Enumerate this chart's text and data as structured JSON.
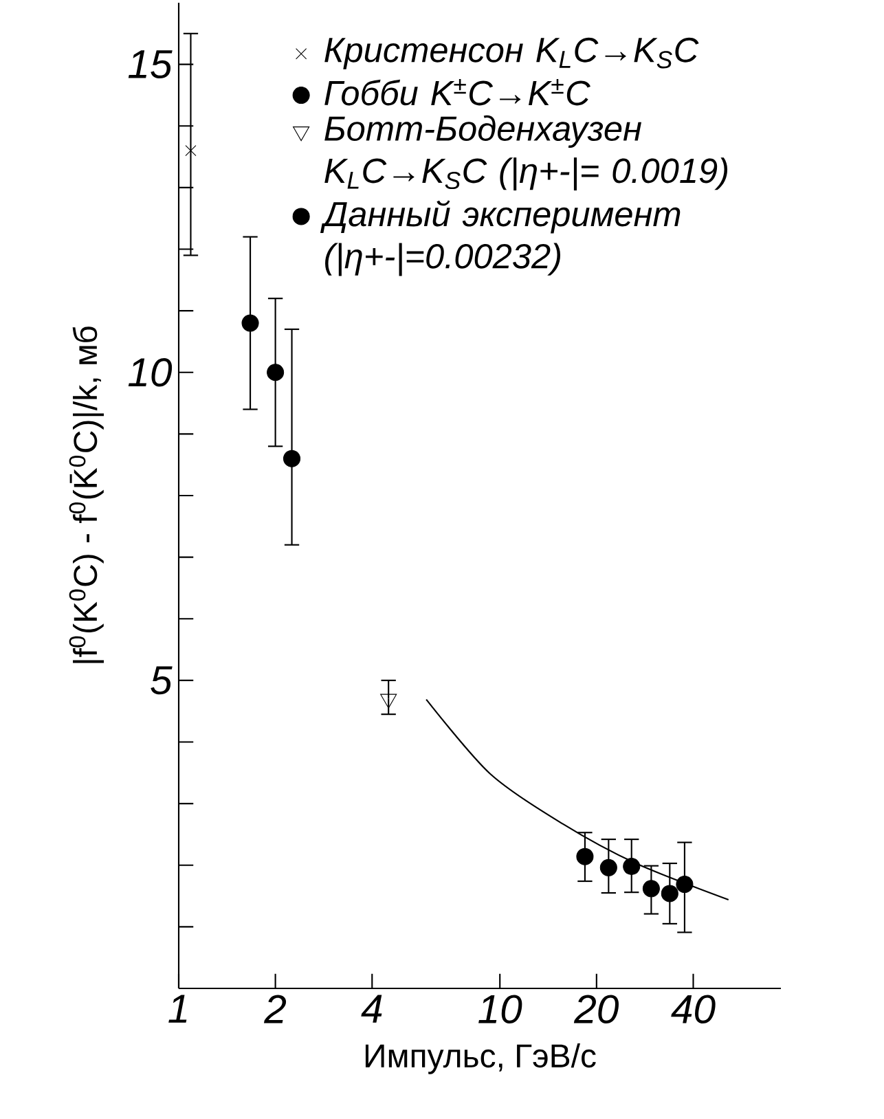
{
  "chart_data": {
    "type": "scatter",
    "xlabel": "Импульс, ГэВ/с",
    "ylabel": "|f$^{0}$(K$^{0}$C) - f$^{0}$(K̄$^{0}$C)|/k, мб",
    "log": "x",
    "grid": false,
    "legend": "top right",
    "xlim": [
      1,
      75
    ],
    "xticks": [
      1,
      2,
      4,
      10,
      20,
      40
    ],
    "ylim": [
      0,
      16
    ],
    "yticks": [
      {
        "value": 1,
        "label": null
      },
      {
        "value": 2,
        "label": null
      },
      {
        "value": 3,
        "label": null
      },
      {
        "value": 4,
        "label": null
      },
      5,
      {
        "value": 6,
        "label": null
      },
      {
        "value": 7,
        "label": null
      },
      {
        "value": 8,
        "label": null
      },
      {
        "value": 9,
        "label": null
      },
      10,
      {
        "value": 11,
        "label": null
      },
      {
        "value": 12,
        "label": null
      },
      {
        "value": 13,
        "label": null
      },
      {
        "value": 14,
        "label": null
      },
      15
    ],
    "series": [
      {
        "name": "Кристенсон K$_{L}$C→K$_{S}$C",
        "color": "#000000",
        "marker": "cross",
        "x": [
          1.09
        ],
        "values": [
          13.6
        ],
        "errors": [
          [
            11.9,
            15.5
          ]
        ]
      },
      {
        "name": "Гобби K$^{±}$C→K$^{±}$C",
        "color": "#000000",
        "marker": "circle",
        "x": [
          1.67,
          2.0,
          2.25
        ],
        "values": [
          10.8,
          10.0,
          8.6
        ],
        "errors": [
          [
            9.4,
            12.2
          ],
          [
            8.8,
            11.2
          ],
          [
            7.2,
            10.7
          ]
        ]
      },
      {
        "name": "Ботт-Боденхаузен K$_{L}$C→K$_{S}$C (|η+-|= 0.0019)",
        "color": "#000000",
        "marker": "triangle",
        "x": [
          4.5
        ],
        "values": [
          4.7
        ],
        "errors": [
          [
            4.45,
            5.0
          ]
        ]
      },
      {
        "name": "Данный эксперимент (|η+-|=0.00232)",
        "color": "#000000",
        "marker": "circle",
        "x": [
          18.4,
          21.8,
          25.7,
          29.6,
          33.8,
          37.6
        ],
        "values": [
          2.14,
          1.96,
          1.98,
          1.62,
          1.54,
          1.69
        ],
        "errors": [
          [
            1.74,
            2.53
          ],
          [
            1.55,
            2.42
          ],
          [
            1.56,
            2.42
          ],
          [
            1.21,
            1.99
          ],
          [
            1.05,
            2.03
          ],
          [
            0.91,
            2.37
          ]
        ]
      },
      {
        "type": "line",
        "color": "#000000",
        "marker": "none",
        "line_style": "solid",
        "x": [
          5.9,
          9.3,
          15.7,
          26.5,
          51.5
        ],
        "values": [
          4.69,
          3.49,
          2.67,
          2.03,
          1.44
        ]
      }
    ]
  }
}
